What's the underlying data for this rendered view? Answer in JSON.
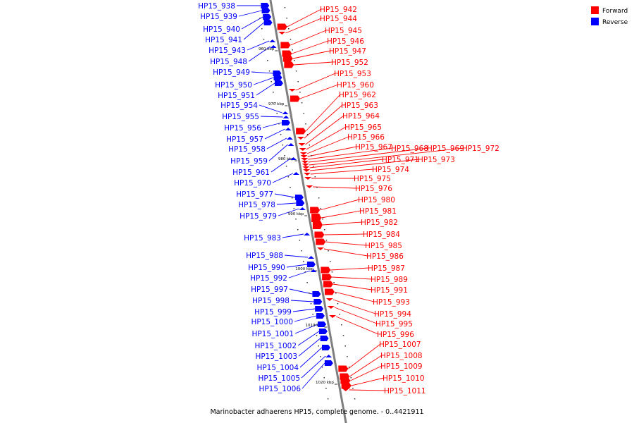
{
  "caption": "Marinobacter adhaerens HP15, complete genome. - 0..4421911",
  "legend": [
    {
      "label": "Forward",
      "color": "#ff0000"
    },
    {
      "label": "Reverse",
      "color": "#0000ff"
    }
  ],
  "colors": {
    "forward": "#ff0000",
    "reverse": "#0000ff",
    "backbone": "#808080"
  },
  "scale_marks": [
    "960 kbp",
    "970 kbp",
    "980 kbp",
    "990 kbp",
    "1000 kbp",
    "1010 kbp",
    "1020 kbp"
  ],
  "reverse_genes": [
    "HP15_938",
    "HP15_939",
    "HP15_940",
    "HP15_941",
    "HP15_943",
    "HP15_948",
    "HP15_949",
    "HP15_950",
    "HP15_951",
    "HP15_954",
    "HP15_955",
    "HP15_956",
    "HP15_957",
    "HP15_958",
    "HP15_959",
    "HP15_961",
    "HP15_970",
    "HP15_977",
    "HP15_978",
    "HP15_979",
    "HP15_983",
    "HP15_988",
    "HP15_990",
    "HP15_992",
    "HP15_997",
    "HP15_998",
    "HP15_999",
    "HP15_1000",
    "HP15_1001",
    "HP15_1002",
    "HP15_1003",
    "HP15_1004",
    "HP15_1005",
    "HP15_1006"
  ],
  "forward_genes": [
    "HP15_942",
    "HP15_944",
    "HP15_945",
    "HP15_946",
    "HP15_947",
    "HP15_952",
    "HP15_953",
    "HP15_960",
    "HP15_962",
    "HP15_963",
    "HP15_964",
    "HP15_965",
    "HP15_966",
    "HP15_967",
    "HP15_968",
    "HP15_969",
    "HP15_972",
    "HP15_971",
    "HP15_973",
    "HP15_974",
    "HP15_975",
    "HP15_976",
    "HP15_980",
    "HP15_981",
    "HP15_982",
    "HP15_984",
    "HP15_985",
    "HP15_986",
    "HP15_987",
    "HP15_989",
    "HP15_991",
    "HP15_993",
    "HP15_994",
    "HP15_995",
    "HP15_996",
    "HP15_1007",
    "HP15_1008",
    "HP15_1009",
    "HP15_1010",
    "HP15_1011"
  ]
}
